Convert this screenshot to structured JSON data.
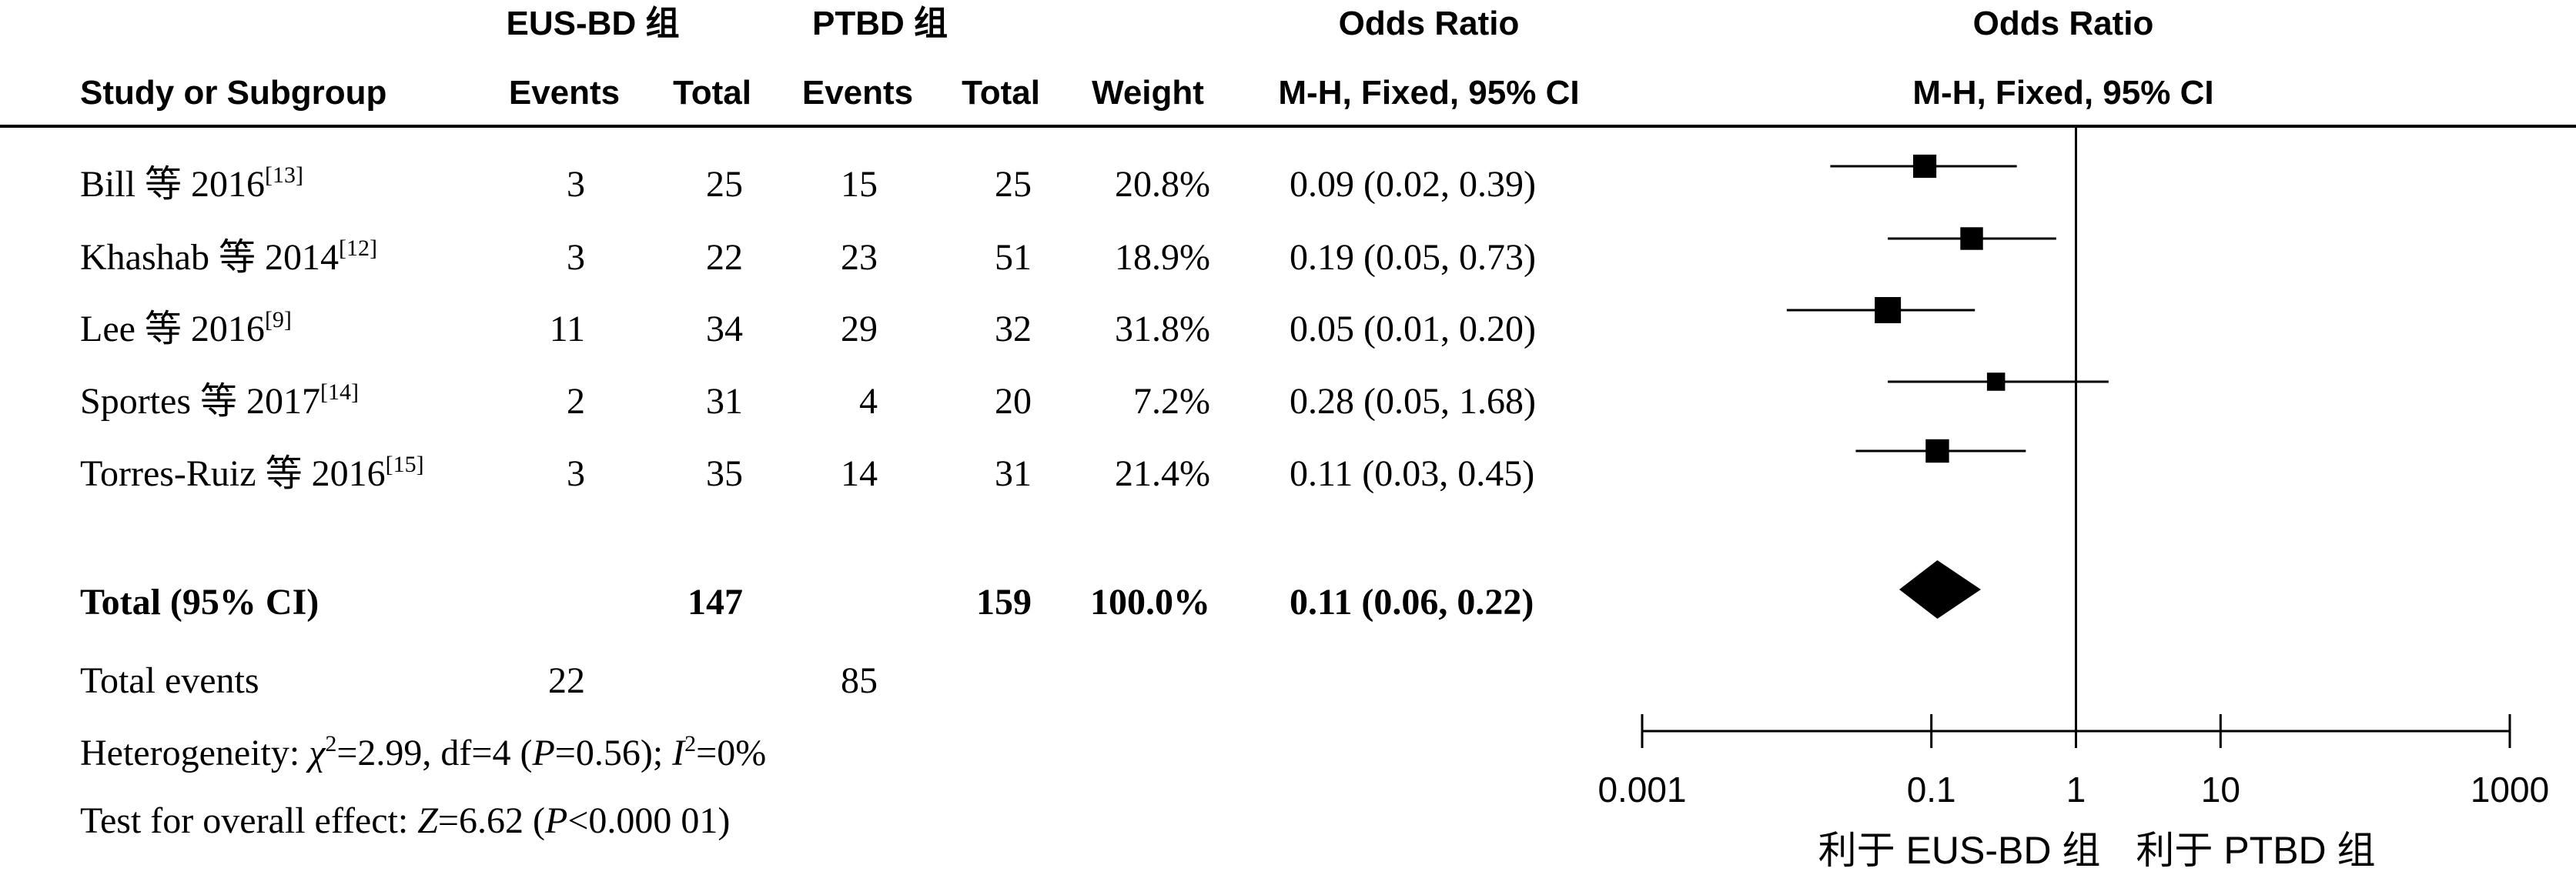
{
  "header": {
    "group1_label": "EUS-BD 组",
    "group2_label": "PTBD 组",
    "odds_ratio_label": "Odds Ratio",
    "odds_ratio_label_plot": "Odds Ratio",
    "study_col": "Study or Subgroup",
    "events_label": "Events",
    "total_label": "Total",
    "events2_label": "Events",
    "total2_label": "Total",
    "weight_label": "Weight",
    "method_label": "M-H, Fixed, 95% CI",
    "method_label_plot": "M-H, Fixed, 95% CI"
  },
  "studies": [
    {
      "name": "Bill 等 2016",
      "ref": "[13]",
      "e1": "3",
      "t1": "25",
      "e2": "15",
      "t2": "25",
      "weight": "20.8%",
      "ci_text": "0.09 (0.02, 0.39)"
    },
    {
      "name": "Khashab 等 2014",
      "ref": "[12]",
      "e1": "3",
      "t1": "22",
      "e2": "23",
      "t2": "51",
      "weight": "18.9%",
      "ci_text": "0.19 (0.05, 0.73)"
    },
    {
      "name": "Lee 等 2016",
      "ref": "[9]",
      "e1": "11",
      "t1": "34",
      "e2": "29",
      "t2": "32",
      "weight": "31.8%",
      "ci_text": "0.05 (0.01, 0.20)"
    },
    {
      "name": "Sportes 等 2017",
      "ref": "[14]",
      "e1": "2",
      "t1": "31",
      "e2": "4",
      "t2": "20",
      "weight": "7.2%",
      "ci_text": "0.28 (0.05, 1.68)"
    },
    {
      "name": "Torres-Ruiz 等 2016",
      "ref": "[15]",
      "e1": "3",
      "t1": "35",
      "e2": "14",
      "t2": "31",
      "weight": "21.4%",
      "ci_text": "0.11 (0.03, 0.45)"
    }
  ],
  "total": {
    "label": "Total (95% CI)",
    "t1": "147",
    "t2": "159",
    "weight": "100.0%",
    "ci_text": "0.11 (0.06, 0.22)"
  },
  "total_events": {
    "label": "Total events",
    "e1": "22",
    "e2": "85"
  },
  "heterogeneity": {
    "prefix": "Heterogeneity: ",
    "chi": "χ",
    "chi_sup": "2",
    "chi_rest": "=2.99, df=4 (",
    "p": "P",
    "p_rest": "=0.56); ",
    "i": "I",
    "i_sup": "2",
    "i_rest": "=0%"
  },
  "overall_effect": {
    "prefix": "Test for overall effect: ",
    "z": "Z",
    "z_rest": "=6.62 (",
    "p": "P",
    "p_rest": "<0.000 01)"
  },
  "favours": {
    "left": "利于 EUS-BD 组",
    "right": "利于 PTBD 组"
  },
  "chart_data": {
    "type": "scatter",
    "subtype": "forest-plot",
    "scale": "log",
    "xlim": [
      0.001,
      1000
    ],
    "x_ticks": [
      0.001,
      0.1,
      1,
      10,
      1000
    ],
    "x_tick_labels": [
      "0.001",
      "0.1",
      "1",
      "10",
      "1000"
    ],
    "reference_line": 1,
    "series": [
      {
        "studies": [
          "Bill 等 2016",
          "Khashab 等 2014",
          "Lee 等 2016",
          "Sportes 等 2017",
          "Torres-Ruiz 等 2016"
        ],
        "or": [
          0.09,
          0.19,
          0.05,
          0.28,
          0.11
        ],
        "ci_low": [
          0.02,
          0.05,
          0.01,
          0.05,
          0.03
        ],
        "ci_high": [
          0.39,
          0.73,
          0.2,
          1.68,
          0.45
        ],
        "weight": [
          20.8,
          18.9,
          31.8,
          7.2,
          21.4
        ]
      }
    ],
    "pooled": {
      "or": 0.11,
      "ci_low": 0.06,
      "ci_high": 0.22
    }
  }
}
